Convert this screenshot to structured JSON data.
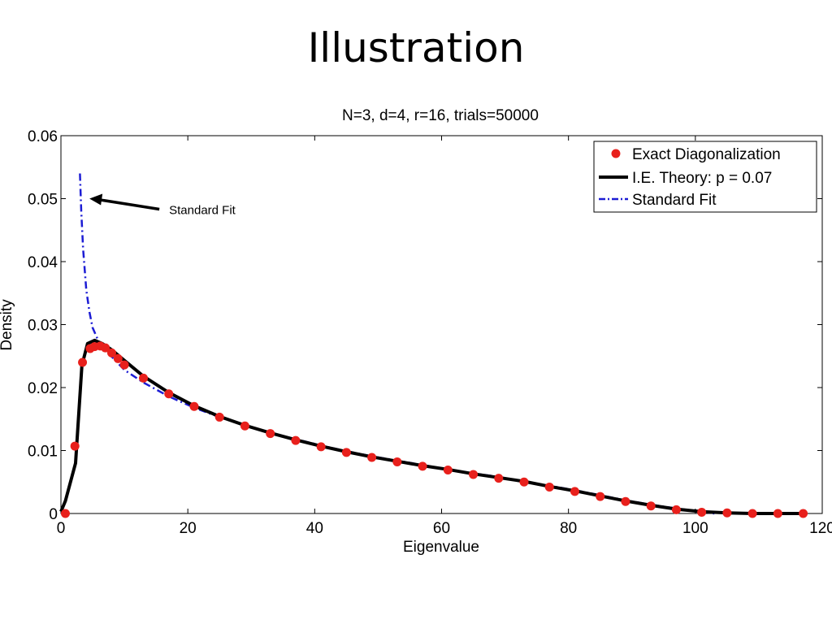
{
  "slide": {
    "title": "Illustration"
  },
  "chart_data": {
    "type": "line",
    "title": "N=3, d=4, r=16, trials=50000",
    "xlabel": "Eigenvalue",
    "ylabel": "Density",
    "xlim": [
      0,
      120
    ],
    "ylim": [
      0,
      0.06
    ],
    "xticks": [
      0,
      20,
      40,
      60,
      80,
      100,
      120
    ],
    "xtick_labels": [
      "0",
      "20",
      "40",
      "60",
      "80",
      "100",
      "120"
    ],
    "yticks": [
      0,
      0.01,
      0.02,
      0.03,
      0.04,
      0.05,
      0.06
    ],
    "ytick_labels": [
      "0",
      "0.01",
      "0.02",
      "0.03",
      "0.04",
      "0.05",
      "0.06"
    ],
    "grid": false,
    "legend_position": "top-right",
    "annotation": {
      "text": "Standard Fit",
      "points_to": {
        "x": 4.5,
        "y": 0.05
      }
    },
    "series": [
      {
        "name": "Exact Diagonalization",
        "style": "markers",
        "color": "#e8201c",
        "x": [
          0.7,
          2.2,
          3.4,
          4.6,
          5.3,
          6.2,
          7.0,
          8.0,
          9.0,
          10.0,
          13.0,
          17.0,
          21.0,
          25.0,
          29.0,
          33.0,
          37.0,
          41.0,
          45.0,
          49.0,
          53.0,
          57.0,
          61.0,
          65.0,
          69.0,
          73.0,
          77.0,
          81.0,
          85.0,
          89.0,
          93.0,
          97.0,
          101.0,
          105.0,
          109.0,
          113.0,
          117.0
        ],
        "y": [
          0.0,
          0.0107,
          0.024,
          0.0262,
          0.0265,
          0.0266,
          0.0263,
          0.0255,
          0.0246,
          0.0236,
          0.0215,
          0.019,
          0.017,
          0.0153,
          0.0139,
          0.0127,
          0.0116,
          0.0106,
          0.0097,
          0.0089,
          0.0082,
          0.0075,
          0.0069,
          0.0062,
          0.0056,
          0.005,
          0.0042,
          0.0035,
          0.0027,
          0.0019,
          0.0012,
          0.0006,
          0.0002,
          0.0001,
          0.0,
          0.0,
          0.0
        ]
      },
      {
        "name": "I.E. Theory: p = 0.07",
        "style": "solid",
        "color": "#000000",
        "x": [
          0,
          0.7,
          2.3,
          3.3,
          4.2,
          5.3,
          6.5,
          8,
          10,
          13,
          17,
          21,
          25,
          29,
          33,
          37,
          41,
          45,
          49,
          53,
          57,
          61,
          65,
          69,
          73,
          77,
          81,
          85,
          89,
          93,
          97,
          101,
          105,
          109,
          113,
          117
        ],
        "y": [
          0.0003,
          0.002,
          0.008,
          0.0235,
          0.027,
          0.0275,
          0.027,
          0.026,
          0.0243,
          0.0218,
          0.0192,
          0.0171,
          0.0154,
          0.014,
          0.0128,
          0.0117,
          0.0107,
          0.0098,
          0.009,
          0.0083,
          0.0076,
          0.007,
          0.0063,
          0.0057,
          0.0051,
          0.0043,
          0.0036,
          0.0028,
          0.002,
          0.0013,
          0.0007,
          0.0003,
          0.0001,
          0.0,
          0.0,
          0.0
        ]
      },
      {
        "name": "Standard Fit",
        "style": "dashdot",
        "color": "#1c1cd4",
        "x": [
          3.0,
          3.2,
          3.5,
          4.0,
          4.5,
          5.0,
          6.0,
          7.0,
          8.0,
          10.0,
          13.0,
          17.0,
          21.0,
          25.0,
          29.0,
          33.0,
          37.0,
          41.0,
          45.0,
          49.0,
          53.0,
          57.0,
          61.0,
          65.0,
          69.0,
          73.0,
          77.0,
          81.0,
          85.0,
          89.0,
          93.0,
          97.0,
          101.0,
          103.0
        ],
        "y": [
          0.054,
          0.048,
          0.042,
          0.0355,
          0.032,
          0.0295,
          0.0272,
          0.026,
          0.0249,
          0.0228,
          0.0208,
          0.0186,
          0.0168,
          0.0153,
          0.014,
          0.0128,
          0.0118,
          0.0108,
          0.0099,
          0.0091,
          0.0084,
          0.0077,
          0.007,
          0.0064,
          0.0058,
          0.0051,
          0.0044,
          0.0037,
          0.0029,
          0.0021,
          0.0014,
          0.0008,
          0.0003,
          0.0
        ]
      }
    ]
  }
}
